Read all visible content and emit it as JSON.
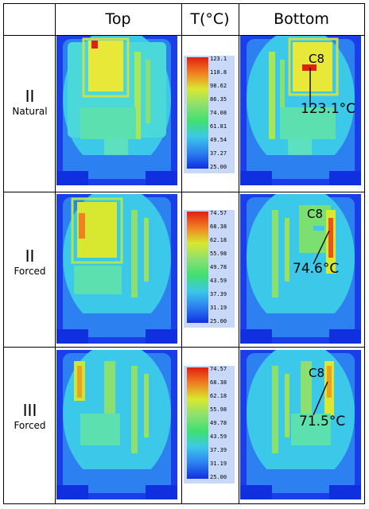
{
  "header": {
    "col_top": "Top",
    "col_temp": "T(°C)",
    "col_bottom": "Bottom"
  },
  "rows": [
    {
      "roman": "II",
      "condition": "Natural",
      "scale_ticks": [
        "123.1",
        "110.8",
        "98.62",
        "86.35",
        "74.08",
        "61.81",
        "49.54",
        "37.27",
        "25.00"
      ],
      "component": "C8",
      "max_temp": "123.1°C"
    },
    {
      "roman": "II",
      "condition": "Forced",
      "scale_ticks": [
        "74.57",
        "68.38",
        "62.18",
        "55.98",
        "49.78",
        "43.59",
        "37.39",
        "31.19",
        "25.00"
      ],
      "component": "C8",
      "max_temp": "74.6°C"
    },
    {
      "roman": "III",
      "condition": "Forced",
      "scale_ticks": [
        "74.57",
        "68.38",
        "62.18",
        "55.98",
        "49.78",
        "43.59",
        "37.39",
        "31.19",
        "25.00"
      ],
      "component": "C8",
      "max_temp": "71.5°C"
    }
  ],
  "colors": {
    "cold": "#1030e0",
    "cool": "#3cc8e8",
    "mid": "#40e070",
    "warm": "#d8e830",
    "hot": "#e02010"
  }
}
